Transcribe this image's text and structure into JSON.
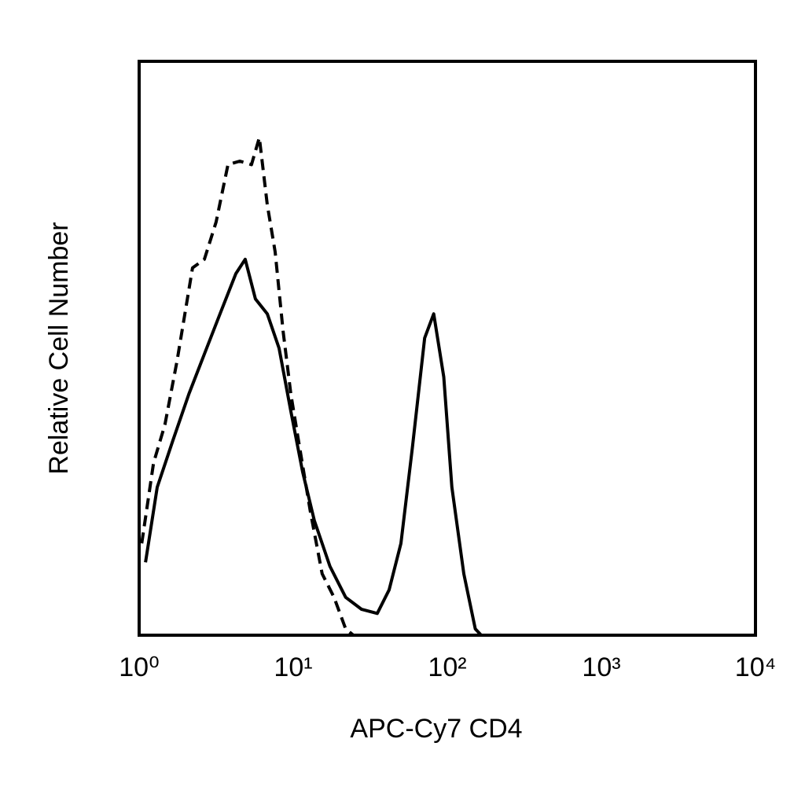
{
  "chart_data": {
    "type": "line",
    "xlabel": "APC-Cy7 CD4",
    "ylabel": "Relative Cell Number",
    "xscale": "log",
    "xlim": [
      1,
      10000
    ],
    "xticks": [
      {
        "value": 1,
        "label": "10⁰"
      },
      {
        "value": 10,
        "label": "10¹"
      },
      {
        "value": 100,
        "label": "10²"
      },
      {
        "value": 1000,
        "label": "10³"
      },
      {
        "value": 10000,
        "label": "10⁴"
      }
    ],
    "ylim": [
      0,
      100
    ],
    "series": [
      {
        "color": "#000000",
        "dashed": false,
        "x": [
          1.1,
          1.31,
          1.66,
          2.1,
          2.65,
          3.35,
          4.24,
          4.88,
          5.68,
          6.79,
          8.09,
          9.65,
          11.5,
          13.7,
          17.3,
          21.9,
          27.8,
          35.1,
          41.9,
          50,
          59.3,
          71.3,
          81.6,
          94.9,
          107,
          128,
          152,
          166
        ],
        "values": [
          12.7,
          25.8,
          34,
          42,
          49,
          56,
          63,
          65.5,
          58.6,
          56,
          50,
          39,
          28.5,
          20,
          12,
          6.6,
          4.5,
          3.8,
          7.9,
          16,
          32.6,
          51.8,
          56,
          45,
          25.8,
          10.7,
          1.1,
          0
        ]
      },
      {
        "color": "#000000",
        "dashed": true,
        "x": [
          1.04,
          1.24,
          1.47,
          1.76,
          2.22,
          2.65,
          3.16,
          3.77,
          4.5,
          5.36,
          6.03,
          6.79,
          7.63,
          8.59,
          9.65,
          10.8,
          12.9,
          15.4,
          18.4,
          21.9,
          24.6
        ],
        "values": [
          16,
          30,
          36.7,
          47.7,
          64,
          65.5,
          72,
          82,
          82.6,
          82,
          86.7,
          75,
          66.8,
          53,
          42,
          34,
          21.6,
          10.7,
          6.6,
          1.1,
          0
        ]
      }
    ]
  }
}
